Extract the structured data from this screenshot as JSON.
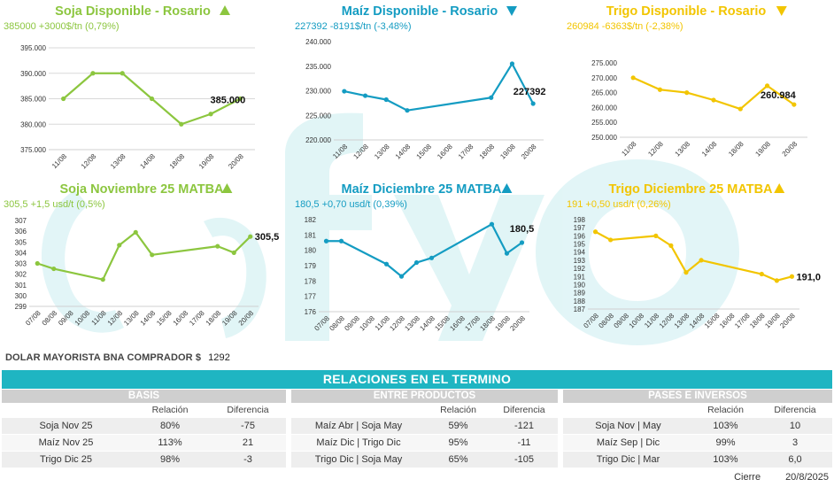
{
  "colors": {
    "green": "#8cc63f",
    "blue": "#149cc2",
    "yellow": "#f2c500",
    "banner": "#1fb5c2",
    "grid": "#d9d9d9"
  },
  "chart_data": [
    {
      "type": "line",
      "color": "green",
      "title": "Soja Disponible - Rosario",
      "arrow": "up",
      "subtitle": "385000 +3000$/tn (0,79%)",
      "categories": [
        "11/08",
        "12/08",
        "13/08",
        "14/08",
        "18/08",
        "19/08",
        "20/08"
      ],
      "values": [
        385000,
        390000,
        390000,
        385000,
        380000,
        382000,
        385000
      ],
      "yticks": [
        "375.000",
        "380.000",
        "385.000",
        "390.000",
        "395.000"
      ],
      "ylim": [
        375000,
        395000
      ],
      "last_label": "385.000",
      "grid": true
    },
    {
      "type": "line",
      "color": "blue",
      "title": "Maíz Disponible - Rosario",
      "arrow": "down",
      "subtitle": "227392 -8191$/tn (-3,48%)",
      "categories": [
        "11/08",
        "12/08",
        "13/08",
        "14/08",
        "15/08",
        "16/08",
        "17/08",
        "18/08",
        "19/08",
        "20/08"
      ],
      "values": [
        229900,
        229000,
        228200,
        226000,
        null,
        null,
        null,
        228600,
        235500,
        227392
      ],
      "yticks": [
        "220.000",
        "225.000",
        "230.000",
        "235.000",
        "240.000"
      ],
      "ylim": [
        220000,
        240000
      ],
      "last_label": "227392",
      "grid": false
    },
    {
      "type": "line",
      "color": "yellow",
      "title": "Trigo Disponible - Rosario",
      "arrow": "down",
      "subtitle": "260984 -6363$/tn (-2,38%)",
      "categories": [
        "11/08",
        "12/08",
        "13/08",
        "14/08",
        "18/08",
        "19/08",
        "20/08"
      ],
      "values": [
        270000,
        266000,
        265000,
        262500,
        259500,
        267300,
        260984
      ],
      "yticks": [
        "250.000",
        "255.000",
        "260.000",
        "265.000",
        "270.000",
        "275.000"
      ],
      "ylim": [
        250000,
        275000
      ],
      "last_label": "260.984",
      "grid": false
    },
    {
      "type": "line",
      "color": "green",
      "title": "Soja Noviembre 25 MATBA",
      "arrow": "up",
      "subtitle": "305,5 +1,5 usd/t (0,5%)",
      "categories": [
        "07/08",
        "08/08",
        "09/08",
        "10/08",
        "11/08",
        "12/08",
        "13/08",
        "14/08",
        "15/08",
        "16/08",
        "17/08",
        "18/08",
        "19/08",
        "20/08"
      ],
      "values": [
        303,
        302.5,
        null,
        null,
        301.5,
        304.7,
        305.9,
        303.8,
        null,
        null,
        null,
        304.6,
        304,
        305.5
      ],
      "yticks": [
        "299",
        "300",
        "301",
        "302",
        "303",
        "304",
        "305",
        "306",
        "307"
      ],
      "ylim": [
        299,
        307
      ],
      "last_label": "305,5",
      "grid": false
    },
    {
      "type": "line",
      "color": "blue",
      "title": "Maíz Diciembre 25 MATBA",
      "arrow": "up",
      "subtitle": "180,5 +0,70 usd/t (0,39%)",
      "categories": [
        "07/08",
        "08/08",
        "09/08",
        "10/08",
        "11/08",
        "12/08",
        "13/08",
        "14/08",
        "15/08",
        "16/08",
        "17/08",
        "18/08",
        "19/08",
        "20/08"
      ],
      "values": [
        180.6,
        180.6,
        null,
        null,
        179.1,
        178.3,
        179.2,
        179.5,
        null,
        null,
        null,
        181.7,
        179.8,
        180.5
      ],
      "yticks": [
        "176",
        "177",
        "178",
        "179",
        "180",
        "181",
        "182"
      ],
      "ylim": [
        176,
        182
      ],
      "last_label": "180,5",
      "grid": false
    },
    {
      "type": "line",
      "color": "yellow",
      "title": "Trigo Diciembre 25 MATBA",
      "arrow": "up",
      "subtitle": "191 +0,50 usd/t (0,26%)",
      "categories": [
        "07/08",
        "08/08",
        "09/08",
        "10/08",
        "11/08",
        "12/08",
        "13/08",
        "14/08",
        "15/08",
        "16/08",
        "17/08",
        "18/08",
        "19/08",
        "20/08"
      ],
      "values": [
        196.5,
        195.5,
        null,
        null,
        196,
        194.8,
        191.5,
        193,
        null,
        null,
        null,
        191.3,
        190.5,
        191
      ],
      "yticks": [
        "187",
        "188",
        "189",
        "190",
        "191",
        "192",
        "193",
        "194",
        "195",
        "196",
        "197",
        "198"
      ],
      "ylim": [
        187,
        198
      ],
      "last_label": "191,0",
      "grid": false
    }
  ],
  "dolar": {
    "label": "DOLAR MAYORISTA BNA COMPRADOR $",
    "value": "1292"
  },
  "relaciones": {
    "title": "RELACIONES EN EL TERMINO",
    "sections": [
      {
        "title": "BASIS",
        "headers": [
          "",
          "Relación",
          "Diferencia"
        ],
        "rows": [
          [
            "Soja Nov 25",
            "80%",
            "-75"
          ],
          [
            "Maíz Nov 25",
            "113%",
            "21"
          ],
          [
            "Trigo Dic 25",
            "98%",
            "-3"
          ]
        ]
      },
      {
        "title": "ENTRE PRODUCTOS",
        "headers": [
          "",
          "Relación",
          "Diferencia"
        ],
        "rows": [
          [
            "Maíz Abr | Soja May",
            "59%",
            "-121"
          ],
          [
            "Maíz Dic | Trigo Dic",
            "95%",
            "-11"
          ],
          [
            "Trigo Dic | Soja May",
            "65%",
            "-105"
          ]
        ]
      },
      {
        "title": "PASES E INVERSOS",
        "headers": [
          "",
          "Relación",
          "Diferencia"
        ],
        "rows": [
          [
            "Soja Nov | May",
            "103%",
            "10"
          ],
          [
            "Maíz Sep | Dic",
            "99%",
            "3"
          ],
          [
            "Trigo Dic | Mar",
            "103%",
            "6,0"
          ]
        ]
      }
    ]
  },
  "footer": {
    "label": "Cierre",
    "date": "20/8/2025"
  }
}
